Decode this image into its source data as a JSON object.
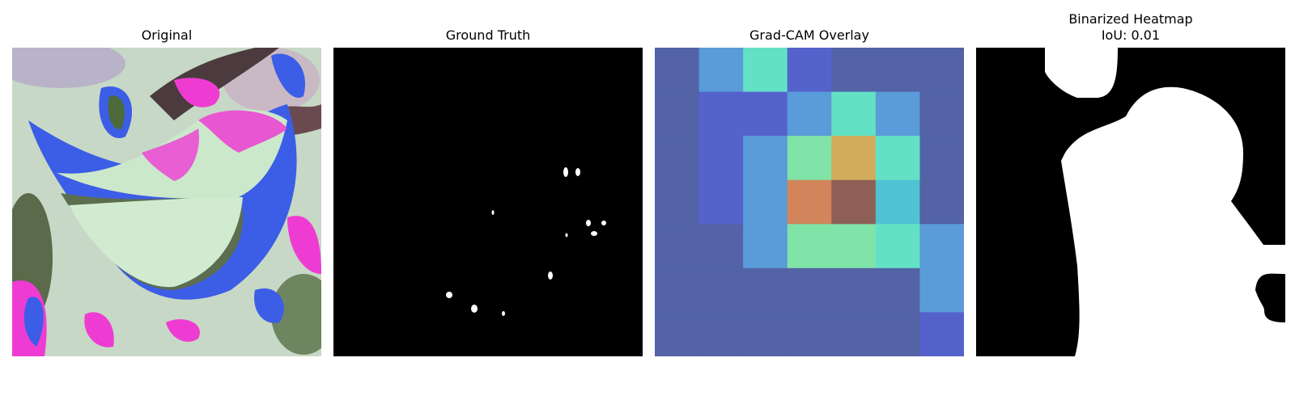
{
  "figure": {
    "panels": [
      {
        "title": "Original",
        "subtitle": ""
      },
      {
        "title": "Ground Truth",
        "subtitle": ""
      },
      {
        "title": "Grad-CAM Overlay",
        "subtitle": ""
      },
      {
        "title": "Binarized Heatmap",
        "subtitle": "IoU: 0.01"
      }
    ]
  },
  "chart_data": {
    "type": "heatmap",
    "title": "Grad-CAM Overlay",
    "grid_size": [
      7,
      7
    ],
    "values": [
      [
        0.15,
        0.35,
        0.55,
        0.2,
        0.15,
        0.15,
        0.1
      ],
      [
        0.15,
        0.2,
        0.25,
        0.35,
        0.55,
        0.35,
        0.15
      ],
      [
        0.15,
        0.25,
        0.35,
        0.65,
        0.8,
        0.6,
        0.15
      ],
      [
        0.15,
        0.2,
        0.35,
        0.9,
        1.0,
        0.4,
        0.15
      ],
      [
        0.15,
        0.15,
        0.35,
        0.62,
        0.62,
        0.5,
        0.3
      ],
      [
        0.1,
        0.1,
        0.1,
        0.1,
        0.1,
        0.1,
        0.35
      ],
      [
        0.1,
        0.1,
        0.1,
        0.1,
        0.1,
        0.1,
        0.25
      ]
    ],
    "iou": 0.01
  },
  "colors": {
    "cam_palette": [
      "#56628f",
      "#5363a6",
      "#5562cc",
      "#5a9bd9",
      "#4fc3d3",
      "#63e1c4",
      "#80e3a7",
      "#d3ac5b",
      "#d2855a",
      "#8d5f57"
    ]
  }
}
